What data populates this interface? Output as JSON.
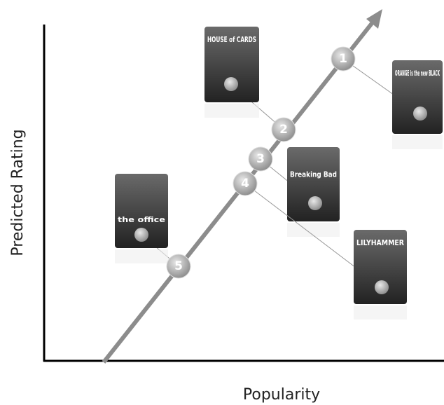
{
  "axes": {
    "y_label": "Predicted Rating",
    "x_label": "Popularity"
  },
  "items": [
    {
      "rank": "1",
      "title": "ORANGE is the new BLACK"
    },
    {
      "rank": "2",
      "title": "HOUSE of CARDS"
    },
    {
      "rank": "3",
      "title": "Breaking Bad"
    },
    {
      "rank": "4",
      "title": "LILYHAMMER"
    },
    {
      "rank": "5",
      "title": "the office"
    }
  ]
}
